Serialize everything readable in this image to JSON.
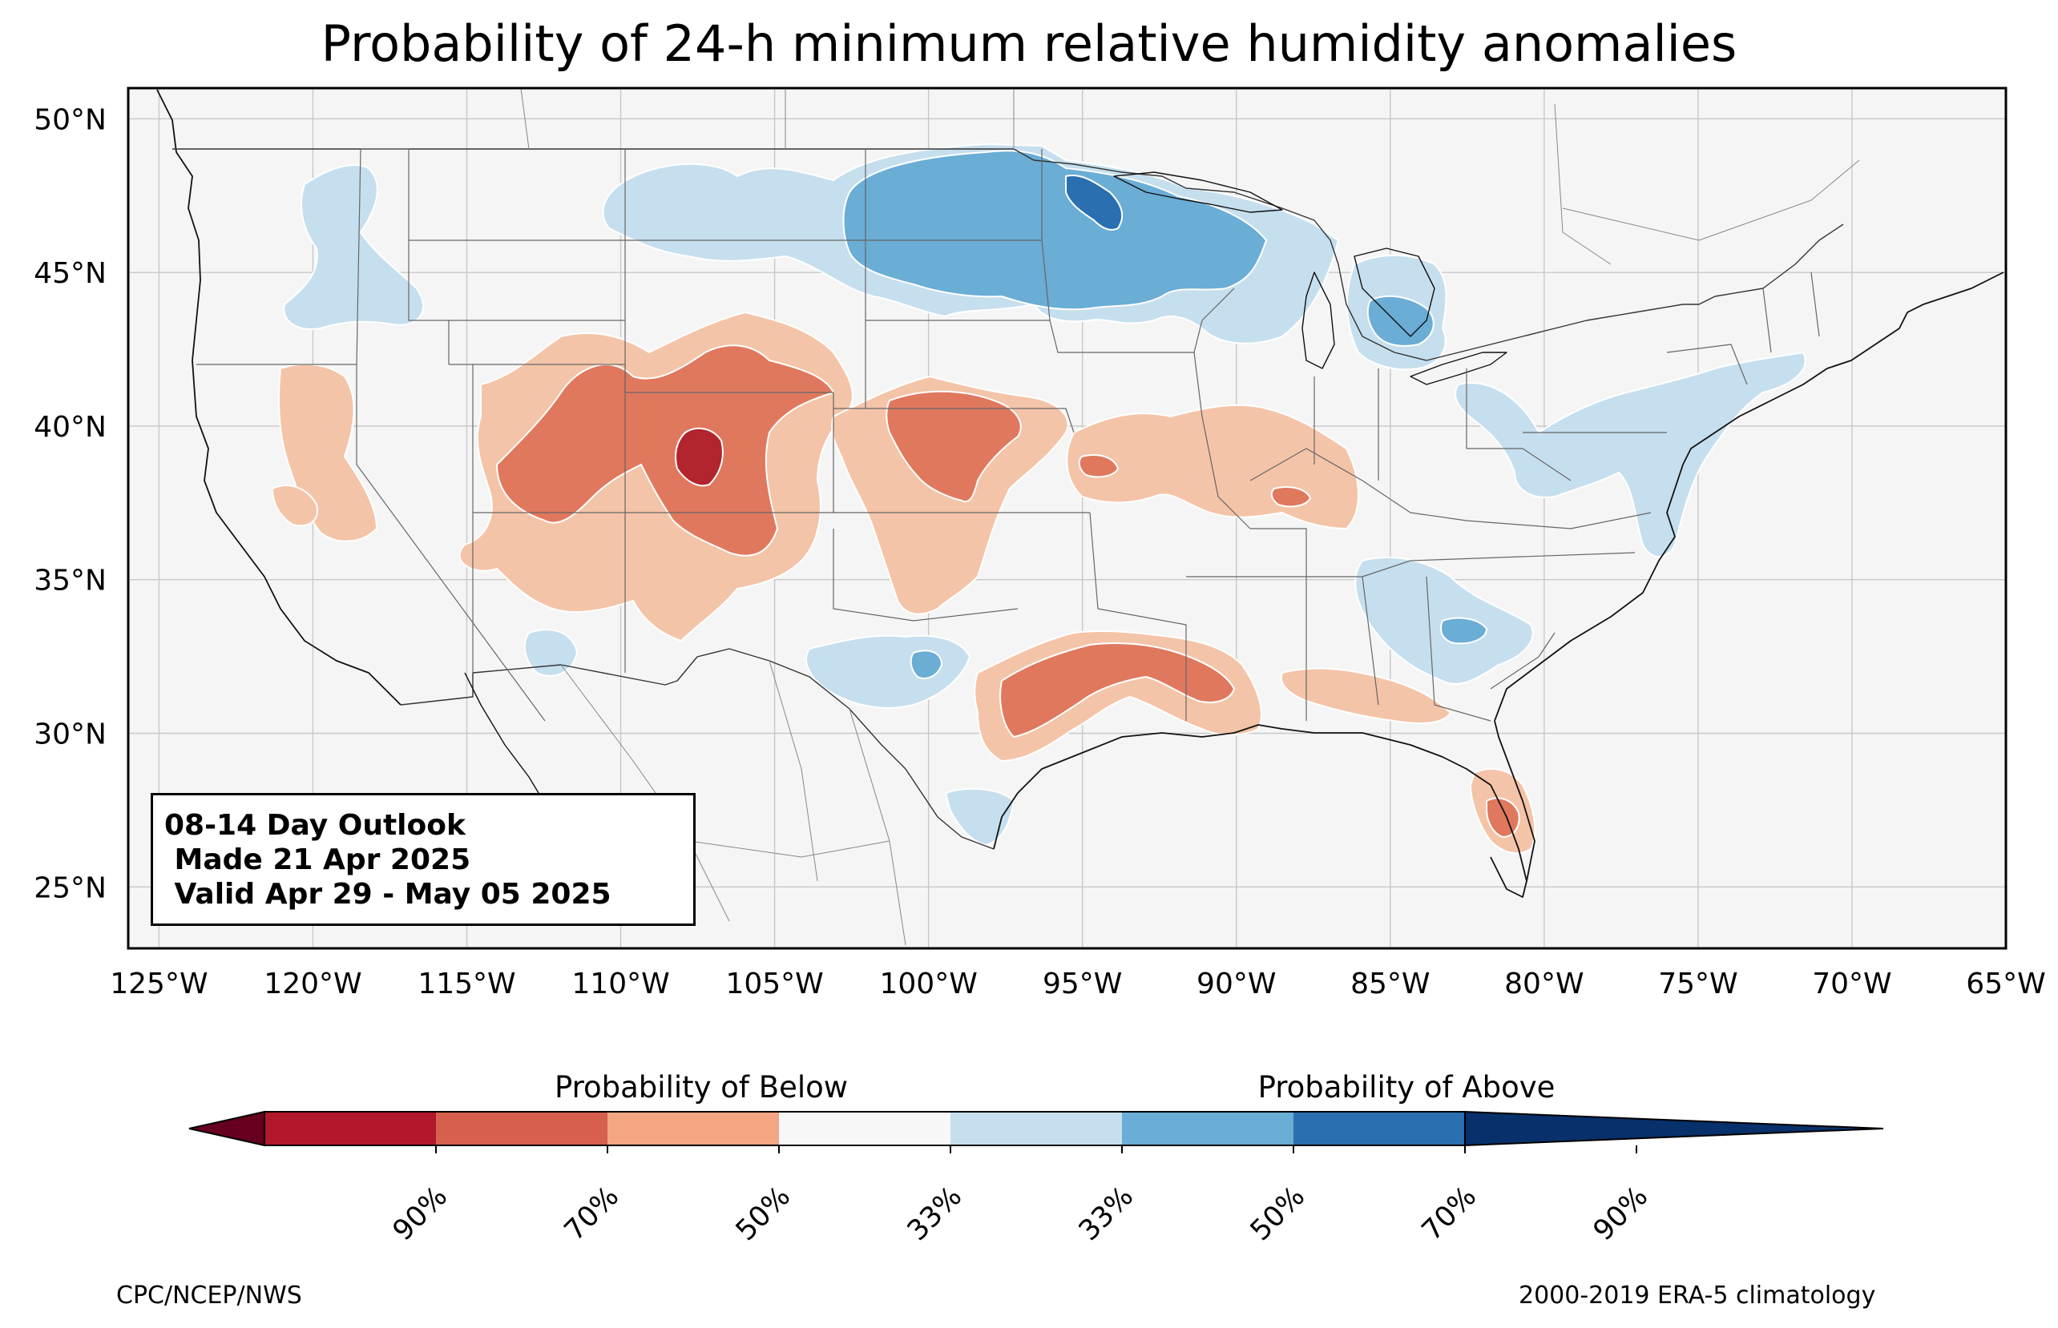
{
  "title": "Probability of 24-h minimum relative humidity anomalies",
  "outlook": {
    "line1": "08-14 Day Outlook",
    "line2": " Made 21 Apr 2025",
    "line3": " Valid Apr 29 - May 05 2025"
  },
  "map": {
    "lon_range": [
      -126,
      -65
    ],
    "lat_range": [
      23,
      51
    ],
    "lon_labels": [
      "125°W",
      "120°W",
      "115°W",
      "110°W",
      "105°W",
      "100°W",
      "95°W",
      "90°W",
      "85°W",
      "80°W",
      "75°W",
      "70°W",
      "65°W"
    ],
    "lat_labels": [
      "25°N",
      "30°N",
      "35°N",
      "40°N",
      "45°N",
      "50°N"
    ],
    "background_color": "#f5f5f5",
    "grid": true
  },
  "colorbar": {
    "below_title": "Probability of Below",
    "above_title": "Probability of Above",
    "tick_labels": [
      "90%",
      "70%",
      "50%",
      "33%",
      "33%",
      "50%",
      "70%",
      "90%"
    ],
    "colors": [
      "#67001f",
      "#b2182b",
      "#d6604d",
      "#f4a582",
      "#fddbc7",
      "#f7f7f7",
      "#d1e5f0",
      "#92c5de",
      "#4393c3",
      "#2166ac",
      "#053061"
    ],
    "bins": [
      "#67001f",
      "#b2182b",
      "#d6604d",
      "#f4a582",
      "#f7f7f7",
      "#c6dfee",
      "#6aadd5",
      "#2a6fb0",
      "#08306b"
    ]
  },
  "anomaly_regions": [
    {
      "category": "above",
      "level": "33%",
      "color": "#c6dfee",
      "center": [
        -95,
        46.2
      ]
    },
    {
      "category": "above",
      "level": "50%",
      "color": "#6aadd5",
      "center": [
        -95,
        46.5
      ]
    },
    {
      "category": "above",
      "level": "70%",
      "color": "#2a6fb0",
      "center": [
        -95.5,
        47.2
      ]
    },
    {
      "category": "above",
      "level": "33%",
      "color": "#c6dfee",
      "center": [
        -84.5,
        43.5
      ]
    },
    {
      "category": "above",
      "level": "50%",
      "color": "#6aadd5",
      "center": [
        -84.6,
        43.2
      ]
    },
    {
      "category": "above",
      "level": "33%",
      "color": "#c6dfee",
      "center": [
        -77,
        39.5
      ]
    },
    {
      "category": "above",
      "level": "33%",
      "color": "#c6dfee",
      "center": [
        -84,
        33
      ]
    },
    {
      "category": "above",
      "level": "33%",
      "color": "#c6dfee",
      "center": [
        -101,
        32
      ]
    },
    {
      "category": "above",
      "level": "33%",
      "color": "#c6dfee",
      "center": [
        -118,
        45
      ]
    },
    {
      "category": "below",
      "level": "33%",
      "color": "#f4c4a8",
      "center": [
        -108,
        38.5
      ]
    },
    {
      "category": "below",
      "level": "50%",
      "color": "#e0785e",
      "center": [
        -108,
        39.5
      ]
    },
    {
      "category": "below",
      "level": "70%",
      "color": "#b2242e",
      "center": [
        -107.3,
        38.8
      ]
    },
    {
      "category": "below",
      "level": "33%",
      "color": "#f4c4a8",
      "center": [
        -98.5,
        38.5
      ]
    },
    {
      "category": "below",
      "level": "50%",
      "color": "#e0785e",
      "center": [
        -98.5,
        39
      ]
    },
    {
      "category": "below",
      "level": "33%",
      "color": "#f4c4a8",
      "center": [
        -93.5,
        32.2
      ]
    },
    {
      "category": "below",
      "level": "50%",
      "color": "#e0785e",
      "center": [
        -93.5,
        32
      ]
    },
    {
      "category": "below",
      "level": "33%",
      "color": "#f4c4a8",
      "center": [
        -89,
        38.8
      ]
    },
    {
      "category": "below",
      "level": "33%",
      "color": "#f4c4a8",
      "center": [
        -81.2,
        27.2
      ]
    },
    {
      "category": "below",
      "level": "50%",
      "color": "#e0785e",
      "center": [
        -81.2,
        27
      ]
    }
  ],
  "footer": {
    "left": "CPC/NCEP/NWS",
    "right": "2000-2019 ERA-5 climatology"
  }
}
